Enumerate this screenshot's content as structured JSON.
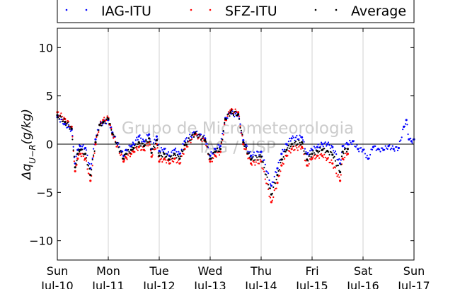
{
  "chart_data": {
    "type": "scatter",
    "title": "",
    "xlabel": "",
    "ylabel": "Δq_{U−R}(g/kg)",
    "ylabel_parts": {
      "main": "Δq",
      "sub": "U−R",
      "unit": "(g/kg)"
    },
    "ylim": [
      -12,
      12
    ],
    "yticks": [
      -10,
      -5,
      0,
      5,
      10
    ],
    "xlim": [
      0,
      7
    ],
    "grid": "vertical",
    "legend_position": "top",
    "x_axis_unit": "days since Sun Jul-10 00:00",
    "xticks": [
      {
        "day": "Sun",
        "date": "Jul-10"
      },
      {
        "day": "Mon",
        "date": "Jul-11"
      },
      {
        "day": "Tue",
        "date": "Jul-12"
      },
      {
        "day": "Wed",
        "date": "Jul-13"
      },
      {
        "day": "Thu",
        "date": "Jul-14"
      },
      {
        "day": "Fri",
        "date": "Jul-15"
      },
      {
        "day": "Sat",
        "date": "Jul-16"
      },
      {
        "day": "Sun",
        "date": "Jul-17"
      }
    ],
    "watermark": [
      "Grupo de Micrometeorologia",
      "IAG / USP"
    ],
    "colors": {
      "IAG-ITU": "#0000ff",
      "SFZ-ITU": "#ff0000",
      "Average": "#000000"
    },
    "series": [
      {
        "name": "IAG-ITU",
        "x": [
          0.0,
          0.15,
          0.28,
          0.35,
          0.4,
          0.45,
          0.55,
          0.65,
          0.75,
          0.83,
          0.9,
          1.0,
          1.08,
          1.3,
          1.35,
          1.45,
          1.5,
          1.6,
          1.7,
          1.8,
          1.85,
          1.95,
          2.0,
          2.1,
          2.2,
          2.3,
          2.4,
          2.5,
          2.7,
          2.9,
          3.0,
          3.1,
          3.2,
          3.3,
          3.4,
          3.55,
          3.65,
          3.8,
          4.0,
          4.2,
          4.32,
          4.4,
          4.5,
          4.6,
          4.8,
          4.9,
          5.0,
          5.1,
          5.2,
          5.3,
          5.4,
          5.55,
          5.6,
          5.7,
          5.8,
          5.9,
          6.0,
          6.1,
          6.2,
          6.3,
          6.4,
          6.5,
          6.6,
          6.7,
          6.8,
          6.85,
          6.9,
          6.95,
          7.0
        ],
        "y": [
          2.8,
          2.1,
          1.5,
          -2.0,
          -0.6,
          -0.2,
          -0.4,
          -2.5,
          0.5,
          2.0,
          2.2,
          2.5,
          1.2,
          -1.2,
          -0.6,
          -0.2,
          0.0,
          0.8,
          0.3,
          1.0,
          -0.5,
          0.8,
          -0.7,
          -0.5,
          -1.2,
          -0.6,
          -1.0,
          0.3,
          1.2,
          0.6,
          -1.2,
          -0.5,
          -0.2,
          2.7,
          3.2,
          3.0,
          0.4,
          -1.2,
          -0.8,
          -4.3,
          -2.5,
          -1.0,
          0.0,
          0.6,
          0.7,
          -1.0,
          -0.6,
          -0.3,
          0.0,
          0.0,
          -0.3,
          -2.0,
          -0.2,
          0.0,
          0.3,
          -0.5,
          -0.6,
          -1.5,
          -0.3,
          -0.5,
          -0.6,
          -0.2,
          -0.5,
          -0.4,
          1.8,
          2.5,
          0.5,
          0.3,
          0.5
        ]
      },
      {
        "name": "SFZ-ITU",
        "x": [
          0.0,
          0.15,
          0.28,
          0.35,
          0.4,
          0.45,
          0.55,
          0.65,
          0.75,
          0.83,
          0.9,
          1.0,
          1.08,
          1.3,
          1.35,
          1.45,
          1.5,
          1.6,
          1.7,
          1.8,
          1.85,
          1.95,
          2.0,
          2.1,
          2.2,
          2.3,
          2.4,
          2.5,
          2.7,
          2.9,
          3.0,
          3.1,
          3.2,
          3.3,
          3.4,
          3.55,
          3.65,
          3.8,
          4.0,
          4.2,
          4.32,
          4.4,
          4.5,
          4.6,
          4.8,
          4.9,
          5.0,
          5.1,
          5.2,
          5.3,
          5.4,
          5.55,
          5.6,
          5.7
        ],
        "y": [
          3.3,
          2.6,
          1.8,
          -2.8,
          -1.5,
          -1.0,
          -1.5,
          -3.8,
          0.0,
          2.0,
          2.5,
          2.7,
          1.0,
          -1.8,
          -1.4,
          -1.0,
          -0.8,
          -0.3,
          -0.6,
          0.2,
          -1.3,
          0.0,
          -1.8,
          -1.5,
          -2.0,
          -1.5,
          -2.0,
          -0.5,
          1.0,
          0.3,
          -1.8,
          -1.2,
          -0.8,
          2.5,
          3.5,
          3.3,
          0.0,
          -2.0,
          -1.8,
          -6.0,
          -4.0,
          -2.2,
          -1.2,
          -0.5,
          -0.3,
          -2.2,
          -1.5,
          -1.2,
          -1.2,
          -1.5,
          -2.0,
          -3.8,
          -1.5,
          -1.0
        ]
      },
      {
        "name": "Average",
        "x": [
          0.0,
          0.15,
          0.28,
          0.35,
          0.4,
          0.45,
          0.55,
          0.65,
          0.75,
          0.83,
          0.9,
          1.0,
          1.08,
          1.3,
          1.35,
          1.45,
          1.5,
          1.6,
          1.7,
          1.8,
          1.85,
          1.95,
          2.0,
          2.1,
          2.2,
          2.3,
          2.4,
          2.5,
          2.7,
          2.9,
          3.0,
          3.1,
          3.2,
          3.3,
          3.4,
          3.55,
          3.65,
          3.8,
          4.0,
          4.2,
          4.32,
          4.4,
          4.5,
          4.6,
          4.8,
          4.9,
          5.0,
          5.1,
          5.2,
          5.3,
          5.4,
          5.55,
          5.6,
          5.7
        ],
        "y": [
          3.0,
          2.3,
          1.6,
          -2.4,
          -1.0,
          -0.6,
          -1.0,
          -3.2,
          0.2,
          2.0,
          2.3,
          2.6,
          1.1,
          -1.5,
          -1.0,
          -0.6,
          -0.4,
          0.2,
          -0.2,
          0.6,
          -0.9,
          0.4,
          -1.2,
          -1.0,
          -1.6,
          -1.0,
          -1.5,
          -0.1,
          1.1,
          0.4,
          -1.5,
          -0.8,
          -0.5,
          2.6,
          3.3,
          3.1,
          0.2,
          -1.6,
          -1.3,
          -5.2,
          -3.2,
          -1.6,
          -0.6,
          0.0,
          0.2,
          -1.6,
          -1.0,
          -0.7,
          -0.6,
          -0.7,
          -1.1,
          -2.9,
          -0.8,
          -0.5
        ]
      }
    ]
  }
}
